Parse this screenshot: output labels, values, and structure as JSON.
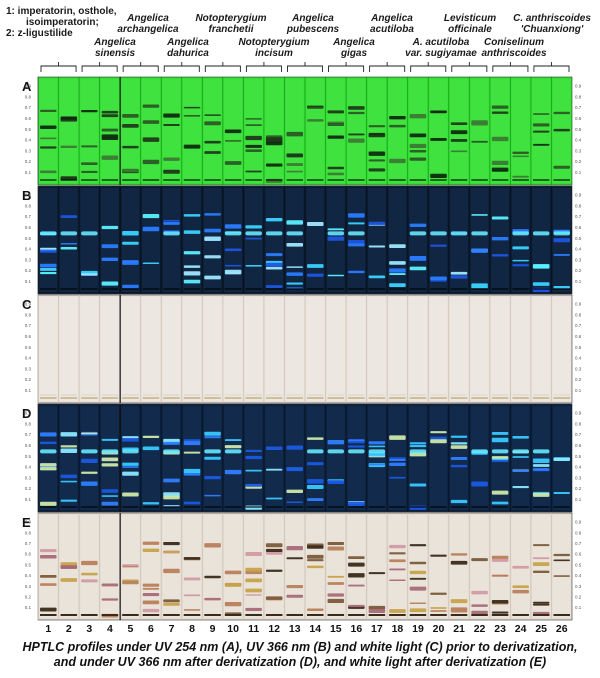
{
  "legend": {
    "line1": "1: imperatorin, osthole,",
    "line2": "isoimperatorin;",
    "line3": "2: z-ligustilide"
  },
  "species": [
    {
      "lines": [
        "Angelica",
        "sinensis"
      ]
    },
    {
      "lines": [
        "Angelica",
        "archangelica"
      ]
    },
    {
      "lines": [
        "Angelica",
        "dahurica"
      ]
    },
    {
      "lines": [
        "Notopterygium",
        "franchetii"
      ]
    },
    {
      "lines": [
        "Notopterygium",
        "incisum"
      ]
    },
    {
      "lines": [
        "Angelica",
        "pubescens"
      ]
    },
    {
      "lines": [
        "Angelica",
        "gigas"
      ]
    },
    {
      "lines": [
        "Angelica",
        "acutiloba"
      ]
    },
    {
      "lines": [
        "A. acutiloba",
        "var. sugiyamae"
      ]
    },
    {
      "lines": [
        "Levisticum",
        "officinale"
      ]
    },
    {
      "lines": [
        "Coniselinum",
        "anthriscoides"
      ]
    },
    {
      "lines": [
        "C. anthriscoides",
        "'Chuanxiong'"
      ]
    }
  ],
  "panels": [
    {
      "letter": "A",
      "kind": "uv254"
    },
    {
      "letter": "B",
      "kind": "uv366"
    },
    {
      "letter": "C",
      "kind": "white"
    },
    {
      "letter": "D",
      "kind": "uv366d"
    },
    {
      "letter": "E",
      "kind": "whited"
    }
  ],
  "rf_ticks": [
    "0.9",
    "0.8",
    "0.7",
    "0.6",
    "0.5",
    "0.4",
    "0.3",
    "0.2",
    "0.1"
  ],
  "lanes": [
    "1",
    "2",
    "3",
    "4",
    "5",
    "6",
    "7",
    "8",
    "9",
    "10",
    "11",
    "12",
    "13",
    "14",
    "15",
    "16",
    "17",
    "18",
    "19",
    "20",
    "21",
    "22",
    "23",
    "24",
    "25",
    "26"
  ],
  "caption": {
    "line1": "HPTLC profiles under UV 254 nm (A), UV 366 nm (B) and white light (C) prior to derivatization,",
    "line2": "and under UV 366 nm after derivatization (D), and white light after derivatization (E)"
  },
  "colors": {
    "uv254_bg": "#2fe02f",
    "uv366_bg": "#0a1a2e",
    "white_bg": "#e8e2da",
    "uv366d_bg": "#0b1f3a",
    "whited_bg": "#e6ddd2"
  }
}
